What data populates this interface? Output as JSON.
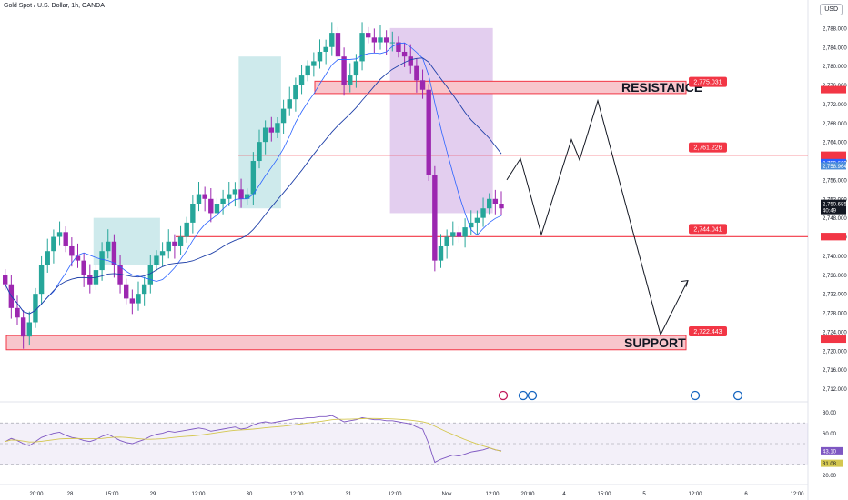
{
  "header": {
    "title": "Gold Spot / U.S. Dollar, 1h, OANDA",
    "currency": "USD"
  },
  "colors": {
    "bull": "#26a69a",
    "bear": "#9c27b0",
    "level": "#f23645",
    "zone_fill": "#f8c6cc",
    "ma_fast": "#2962ff",
    "rsi": "#7e57c2",
    "rsi_ma": "#d4c74f",
    "teal_box": "#a6d8dc",
    "purple_box": "#d7b9e8"
  },
  "chart_data": {
    "type": "candlestick",
    "title": "Gold Spot / U.S. Dollar, 1h, OANDA",
    "ylim": [
      2710,
      2792
    ],
    "y_ticks": [
      "2,788.000",
      "2,784.000",
      "2,780.000",
      "2,776.000",
      "2,772.000",
      "2,768.000",
      "2,764.000",
      "2,760.000",
      "2,756.000",
      "2,752.000",
      "2,748.000",
      "2,744.000",
      "2,740.000",
      "2,736.000",
      "2,732.000",
      "2,728.000",
      "2,724.000",
      "2,720.000",
      "2,716.000",
      "2,712.000"
    ],
    "x_ticks": [
      "20:00",
      "28",
      "15:00",
      "29",
      "12:00",
      "30",
      "12:00",
      "31",
      "12:00",
      "Nov",
      "12:00",
      "20:00",
      "4",
      "15:00",
      "5",
      "12:00",
      "6",
      "12:00"
    ],
    "close_path": [
      2734,
      2729,
      2727,
      2723,
      2726,
      2732,
      2738,
      2741,
      2744,
      2745,
      2742,
      2740,
      2739,
      2736,
      2734,
      2737,
      2741,
      2743,
      2738,
      2734,
      2731,
      2730,
      2732,
      2734,
      2738,
      2740,
      2741,
      2743,
      2742,
      2744,
      2747,
      2751,
      2753,
      2752,
      2749,
      2751,
      2752,
      2753,
      2754,
      2752,
      2753,
      2760,
      2764,
      2767,
      2766,
      2768,
      2771,
      2773,
      2776,
      2778,
      2780,
      2781,
      2783,
      2784,
      2787,
      2782,
      2776,
      2778,
      2781,
      2787,
      2786,
      2785,
      2786,
      2785,
      2785,
      2783,
      2782,
      2780,
      2777,
      2775,
      2757,
      2739,
      2742,
      2744,
      2745,
      2744,
      2746,
      2747,
      2748,
      2750,
      2752,
      2751,
      2750
    ],
    "levels": [
      {
        "label": "2,775.031",
        "value": 2775.031
      },
      {
        "label": "2,761.226",
        "value": 2761.226
      },
      {
        "label": "2,744.041",
        "value": 2744.041
      },
      {
        "label": "2,722.443",
        "value": 2722.443
      }
    ],
    "zones": [
      {
        "name": "RESISTANCE",
        "from": 2774.2,
        "to": 2776.8
      },
      {
        "name": "SUPPORT",
        "from": 2720.2,
        "to": 2723.2
      }
    ],
    "projection": [
      2756,
      2760.5,
      2744.5,
      2764.5,
      2760.2,
      2772.7,
      2723.4,
      2734.8
    ],
    "current_price": {
      "label": "2,750.685",
      "timer": "40:49",
      "value": 2750.685
    },
    "price_tags": [
      {
        "label": "2,761.130",
        "value": 2761.13,
        "color": "#f23645"
      },
      {
        "label": "2,759.669",
        "value": 2759.669,
        "color": "#2962ff"
      },
      {
        "label": "2,758.964",
        "value": 2758.964,
        "color": "#4f8fd8"
      },
      {
        "label": "2,752.000",
        "value": 2752.0,
        "color": ""
      },
      {
        "label": "2,748.000",
        "value": 2748.0,
        "color": ""
      },
      {
        "label": "2,744.077",
        "value": 2744.077,
        "color": "#f23645"
      }
    ],
    "rsi": {
      "ylim": [
        15,
        85
      ],
      "ticks": [
        "80.00",
        "60.00",
        "20.00"
      ],
      "value_label": "43.10",
      "ma_label": "31.08",
      "values": [
        52,
        55,
        53,
        50,
        48,
        52,
        56,
        58,
        60,
        61,
        58,
        56,
        55,
        53,
        52,
        54,
        57,
        59,
        56,
        53,
        51,
        50,
        52,
        54,
        57,
        59,
        60,
        62,
        61,
        62,
        63,
        64,
        65,
        64,
        62,
        63,
        64,
        65,
        66,
        64,
        65,
        68,
        70,
        71,
        70,
        71,
        72,
        73,
        74,
        74,
        75,
        75,
        76,
        76,
        77,
        74,
        71,
        72,
        73,
        75,
        74,
        73,
        73,
        72,
        72,
        71,
        70,
        69,
        66,
        64,
        50,
        32,
        35,
        37,
        39,
        38,
        40,
        42,
        43,
        44,
        46,
        44,
        43
      ]
    }
  }
}
